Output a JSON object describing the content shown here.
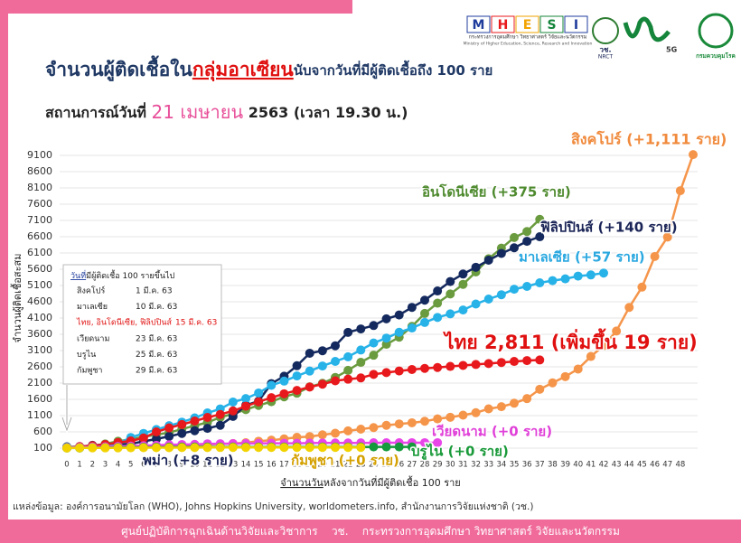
{
  "header": {
    "logo_letters": [
      "M",
      "H",
      "E",
      "S",
      "I"
    ],
    "ministry_th": "กระทรวงการอุดมศึกษา วิทยาศาสตร์ วิจัยและนวัตกรรม",
    "ministry_en": "Ministry of Higher Education, Science, Research and Innovation",
    "nrct_th": "วช.",
    "nrct_en": "NRCT",
    "g5": "5G",
    "ddc": "กรมควบคุมโรค"
  },
  "inset": {
    "header": [
      "วันที่",
      "มีผู้ติดเชื้อ 100 รายขึ้นไป"
    ],
    "rows": [
      [
        "สิงคโปร์",
        "1 มี.ค. 63"
      ],
      [
        "มาเลเซีย",
        "10 มี.ค. 63"
      ],
      [
        "ไทย, อินโดนีเซีย, ฟิลิปปินส์",
        "15 มี.ค. 63"
      ],
      [
        "เวียดนาม",
        "23 มี.ค. 63"
      ],
      [
        "บรูไน",
        "25 มี.ค. 63"
      ],
      [
        "กัมพูชา",
        "29 มี.ค. 63"
      ]
    ]
  },
  "source": "แหล่งข้อมูล: องค์การอนามัยโลก (WHO), Johns Hopkins University, worldometers.info, สำนักงานการวิจัยแห่งชาติ (วช.)",
  "footer": [
    "ศูนย์ปฏิบัติการฉุกเฉินด้านวิจัยและวิชาการ",
    "วช.",
    "กระทรวงการอุดมศึกษา วิทยาศาสตร์ วิจัยและนวัตกรรม"
  ],
  "chart_data": {
    "type": "line",
    "title": [
      "จำนวนผู้ติดเชื้อใน",
      "กลุ่มอาเซียน",
      "นับจากวันที่มีผู้ติดเชื้อถึง 100 ราย"
    ],
    "subtitle": [
      "สถานการณ์วันที่",
      "21 เมษายน",
      "2563",
      "(เวลา 19.30 น.)"
    ],
    "x_label": [
      "จำนวนวัน",
      "หลังจากวันที่มีผู้ติดเชื้อ 100 ราย"
    ],
    "y_label": "จำนวนผู้ติดเชื้อสะสม",
    "grid": true,
    "x": [
      0,
      1,
      2,
      3,
      4,
      5,
      6,
      7,
      8,
      9,
      10,
      11,
      12,
      13,
      14,
      15,
      16,
      17,
      18,
      19,
      20,
      21,
      22,
      23,
      24,
      25,
      26,
      27,
      28,
      29,
      30,
      31,
      32,
      33,
      34,
      35,
      36,
      37,
      38,
      39,
      40,
      41,
      42,
      43,
      44,
      45,
      46,
      47,
      48,
      49
    ],
    "xlim": [
      0,
      49
    ],
    "xticks": [
      0,
      1,
      2,
      3,
      4,
      5,
      6,
      7,
      8,
      9,
      10,
      11,
      12,
      13,
      14,
      15,
      16,
      17,
      18,
      19,
      20,
      21,
      22,
      23,
      24,
      25,
      26,
      27,
      28,
      29,
      30,
      31,
      32,
      33,
      34,
      35,
      36,
      37,
      38,
      39,
      40,
      41,
      42,
      43,
      44,
      45,
      46,
      47,
      48
    ],
    "ylim": [
      100,
      9100
    ],
    "yticks": [
      100,
      600,
      1100,
      1600,
      2100,
      2600,
      3100,
      3600,
      4100,
      4600,
      5100,
      5600,
      6100,
      6600,
      7100,
      7600,
      8100,
      8600,
      9100
    ],
    "series": [
      {
        "name": "สิงคโปร์",
        "label": "สิงคโปร์ (+1,111 ราย)",
        "color": "#f5954a",
        "label_color": "#f08a3c",
        "values": [
          110,
          112,
          117,
          130,
          138,
          150,
          160,
          166,
          178,
          187,
          200,
          212,
          226,
          243,
          266,
          313,
          345,
          385,
          432,
          455,
          509,
          558,
          631,
          683,
          732,
          802,
          844,
          879,
          926,
          1000,
          1049,
          1114,
          1189,
          1309,
          1375,
          1481,
          1623,
          1910,
          2108,
          2299,
          2532,
          2918,
          3252,
          3699,
          4427,
          5050,
          5992,
          6588,
          8014,
          9125
        ]
      },
      {
        "name": "อินโดนีเซีย",
        "label": "อินโดนีเซีย (+375 ราย)",
        "color": "#6a9b3f",
        "label_color": "#4e8a2e",
        "values": [
          117,
          134,
          172,
          227,
          311,
          369,
          450,
          514,
          579,
          686,
          790,
          893,
          1046,
          1155,
          1285,
          1414,
          1528,
          1677,
          1790,
          1986,
          2092,
          2273,
          2491,
          2738,
          2956,
          3293,
          3512,
          3842,
          4241,
          4557,
          4839,
          5136,
          5516,
          5923,
          6248,
          6575,
          6760,
          7135,
          null,
          null,
          null,
          null,
          null,
          null,
          null,
          null,
          null,
          null,
          null,
          null
        ]
      },
      {
        "name": "ฟิลิปปินส์",
        "label": "ฟิลิปปินส์ (+140 ราย)",
        "color": "#14295e",
        "label_color": "#1a2456",
        "values": [
          140,
          142,
          187,
          202,
          217,
          230,
          307,
          380,
          462,
          552,
          636,
          707,
          803,
          1075,
          1418,
          1546,
          2084,
          2311,
          2633,
          3018,
          3094,
          3246,
          3660,
          3764,
          3870,
          4076,
          4195,
          4428,
          4648,
          4932,
          5223,
          5453,
          5660,
          5878,
          6087,
          6259,
          6459,
          6599,
          null,
          null,
          null,
          null,
          null,
          null,
          null,
          null,
          null,
          null,
          null,
          null
        ]
      },
      {
        "name": "มาเลเซีย",
        "label": "มาเลเซีย (+57 ราย)",
        "color": "#27b2e8",
        "label_color": "#2aa8e0",
        "values": [
          129,
          149,
          158,
          197,
          238,
          428,
          553,
          673,
          790,
          900,
          1030,
          1183,
          1306,
          1518,
          1624,
          1796,
          2031,
          2161,
          2320,
          2470,
          2626,
          2766,
          2908,
          3116,
          3333,
          3483,
          3662,
          3793,
          3963,
          4119,
          4228,
          4346,
          4530,
          4683,
          4817,
          4987,
          5072,
          5182,
          5251,
          5305,
          5389,
          5425,
          5482,
          null,
          null,
          null,
          null,
          null,
          null,
          null
        ]
      },
      {
        "name": "ไทย",
        "label": "ไทย 2,811 (เพิ่มขึ้น 19 ราย)",
        "color": "#e8191c",
        "label_color": "#e01010",
        "values": [
          114,
          147,
          177,
          212,
          272,
          322,
          411,
          599,
          721,
          827,
          934,
          1045,
          1136,
          1245,
          1388,
          1524,
          1651,
          1771,
          1875,
          1978,
          2067,
          2169,
          2220,
          2258,
          2369,
          2423,
          2473,
          2518,
          2551,
          2579,
          2613,
          2643,
          2672,
          2700,
          2733,
          2765,
          2792,
          2811,
          null,
          null,
          null,
          null,
          null,
          null,
          null,
          null,
          null,
          null,
          null,
          null
        ]
      },
      {
        "name": "เวียดนาม",
        "label": "เวียดนาม (+0 ราย)",
        "color": "#e846e8",
        "label_color": "#e040d8",
        "values": [
          113,
          123,
          134,
          141,
          153,
          163,
          174,
          188,
          203,
          212,
          218,
          233,
          237,
          240,
          241,
          245,
          249,
          251,
          251,
          255,
          257,
          258,
          260,
          262,
          265,
          266,
          267,
          268,
          268,
          268,
          null,
          null,
          null,
          null,
          null,
          null,
          null,
          null,
          null,
          null,
          null,
          null,
          null,
          null,
          null,
          null,
          null,
          null,
          null,
          null
        ]
      },
      {
        "name": "บรูไน",
        "label": "บรูไน (+0 ราย)",
        "color": "#149a3c",
        "label_color": "#1a9a3a",
        "values": [
          104,
          105,
          114,
          115,
          120,
          126,
          127,
          129,
          131,
          133,
          134,
          135,
          135,
          135,
          135,
          135,
          135,
          136,
          136,
          136,
          136,
          136,
          136,
          137,
          138,
          138,
          138,
          138,
          null,
          null,
          null,
          null,
          null,
          null,
          null,
          null,
          null,
          null,
          null,
          null,
          null,
          null,
          null,
          null,
          null,
          null,
          null,
          null,
          null,
          null
        ]
      },
      {
        "name": "พม่า",
        "label": "พม่า (+8 ราย)",
        "color": "#b07ad0",
        "label_color": "#1a2456",
        "values": [
          111,
          119,
          127,
          null,
          null,
          null,
          null,
          null,
          null,
          null,
          null,
          null,
          null,
          null,
          null,
          null,
          null,
          null,
          null,
          null,
          null,
          null,
          null,
          null,
          null,
          null,
          null,
          null,
          null,
          null,
          null,
          null,
          null,
          null,
          null,
          null,
          null,
          null,
          null,
          null,
          null,
          null,
          null,
          null,
          null,
          null,
          null,
          null,
          null,
          null
        ]
      },
      {
        "name": "กัมพูชา",
        "label": "กัมพูชา (+0 ราย)",
        "color": "#f2d300",
        "label_color": "#d4a000",
        "values": [
          103,
          107,
          109,
          109,
          109,
          110,
          114,
          114,
          115,
          117,
          117,
          119,
          120,
          122,
          122,
          122,
          122,
          122,
          122,
          122,
          122,
          122,
          122,
          122,
          null,
          null,
          null,
          null,
          null,
          null,
          null,
          null,
          null,
          null,
          null,
          null,
          null,
          null,
          null,
          null,
          null,
          null,
          null,
          null,
          null,
          null,
          null,
          null,
          null,
          null
        ]
      }
    ]
  }
}
